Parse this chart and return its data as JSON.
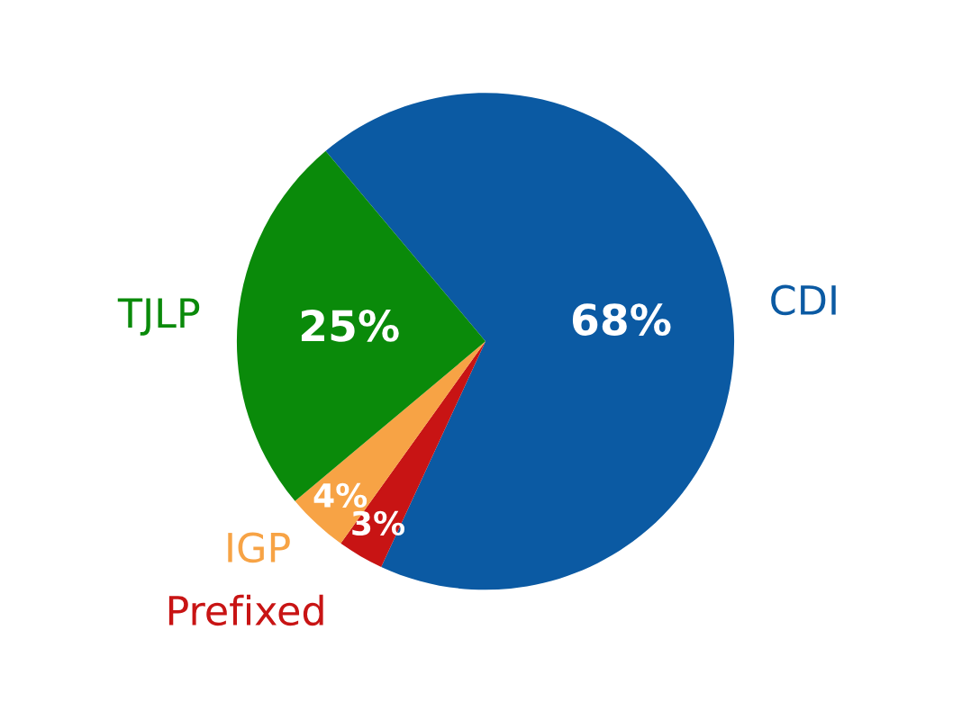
{
  "chart_data": {
    "type": "pie",
    "categories": [
      "CDI",
      "Prefixed",
      "IGP",
      "TJLP"
    ],
    "values": [
      68,
      3,
      4,
      25
    ],
    "colors": [
      "#0b5aa3",
      "#c81414",
      "#f7a345",
      "#0a8a0a"
    ],
    "value_labels": [
      "68%",
      "3%",
      "4%",
      "25%"
    ],
    "legend": false
  }
}
